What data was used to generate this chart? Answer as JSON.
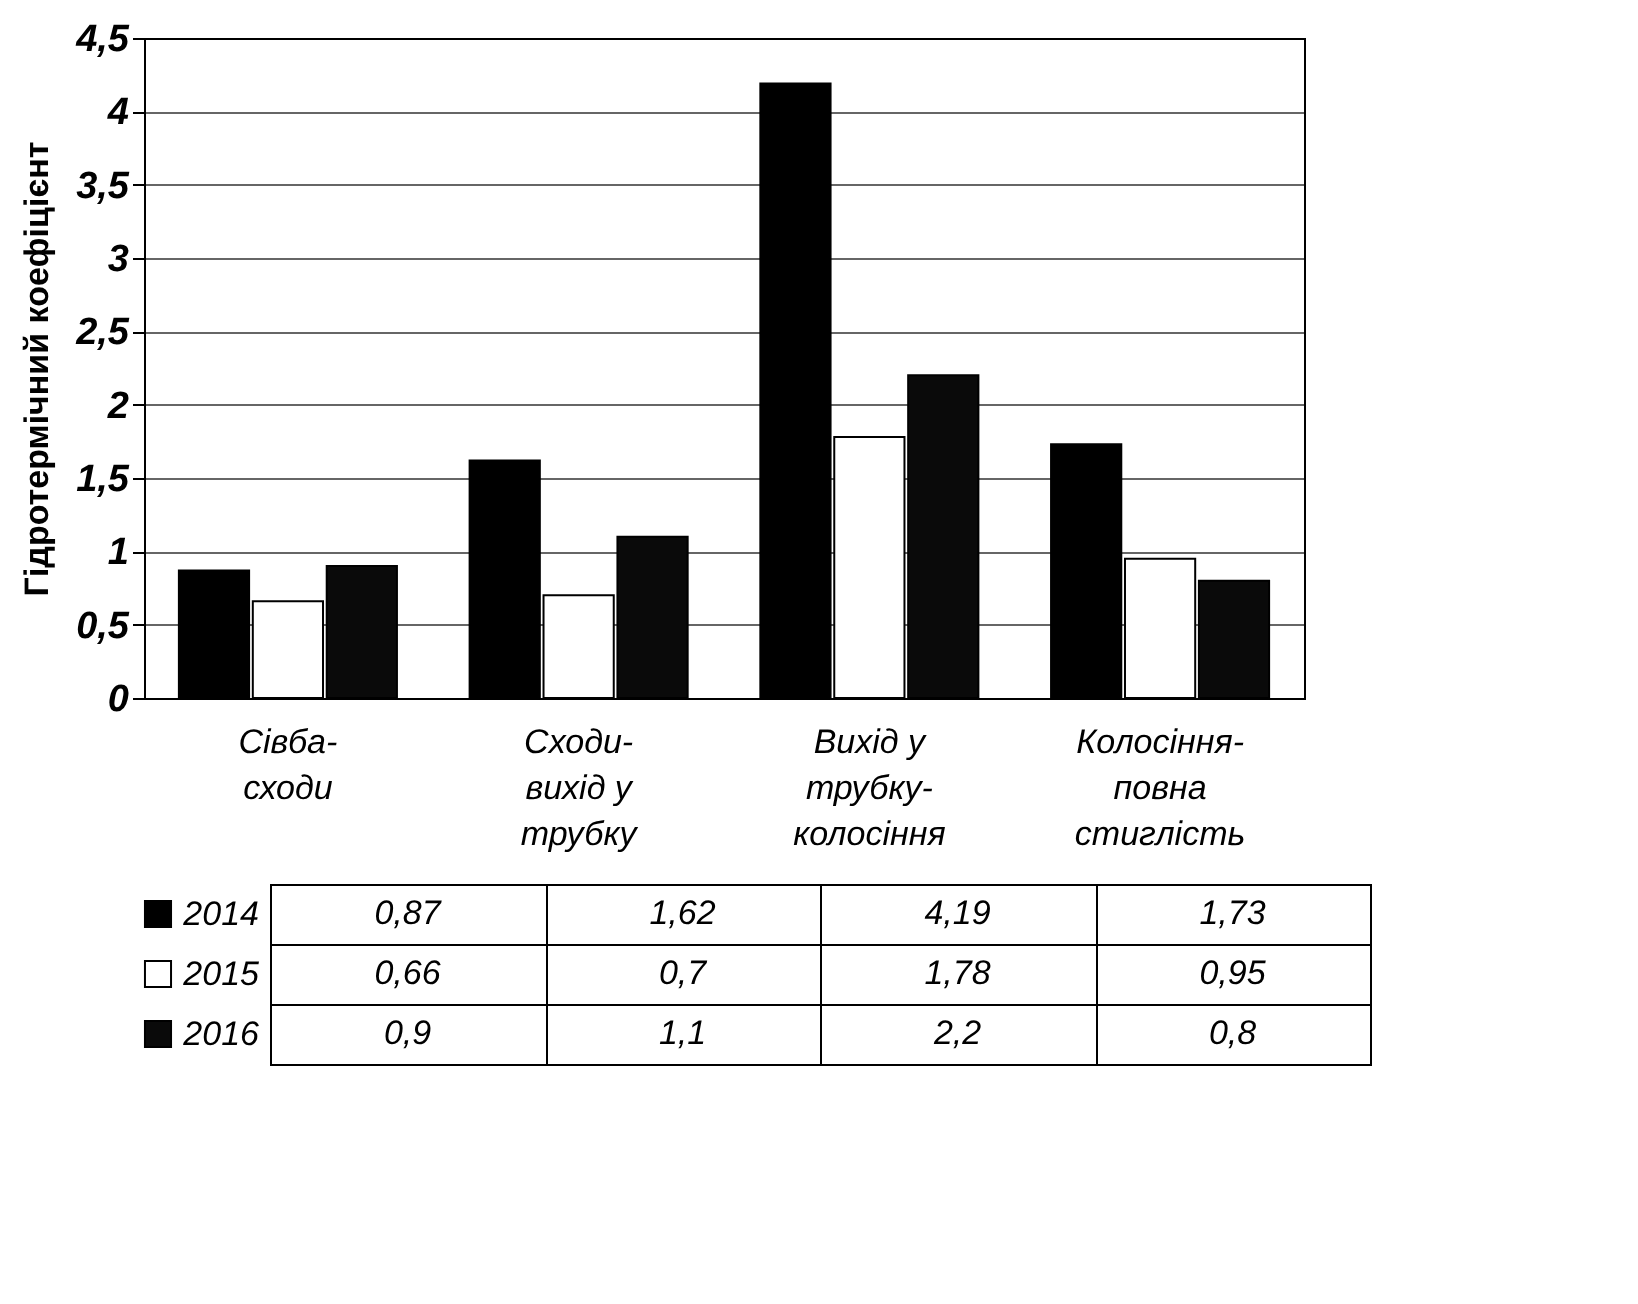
{
  "chart_data": {
    "type": "bar",
    "ylabel": "Гідротермічний коефіцієнт",
    "categories": [
      "Сівба-сходи",
      "Сходи-вихід у трубку",
      "Вихід у трубку-колосіння",
      "Колосіння-повна стиглість"
    ],
    "series": [
      {
        "name": "2014",
        "color": "#000000",
        "values": [
          0.87,
          1.62,
          4.19,
          1.73
        ],
        "value_labels": [
          "0,87",
          "1,62",
          "4,19",
          "1,73"
        ]
      },
      {
        "name": "2015",
        "color": "#ffffff",
        "values": [
          0.66,
          0.7,
          1.78,
          0.95
        ],
        "value_labels": [
          "0,66",
          "0,7",
          "1,78",
          "0,95"
        ]
      },
      {
        "name": "2016",
        "color": "#0a0a0a",
        "values": [
          0.9,
          1.1,
          2.2,
          0.8
        ],
        "value_labels": [
          "0,9",
          "1,1",
          "2,2",
          "0,8"
        ]
      }
    ],
    "ylim": [
      0,
      4.5
    ],
    "yticks": [
      0,
      {
        "value": 0.5,
        "label": "0,5"
      },
      1,
      {
        "value": 1.5,
        "label": "1,5"
      },
      2,
      {
        "value": 2.5,
        "label": "2,5"
      },
      3,
      {
        "value": 3.5,
        "label": "3,5"
      },
      4,
      {
        "value": 4.5,
        "label": "4,5"
      }
    ],
    "grid": "y",
    "legend": "bottom left"
  }
}
